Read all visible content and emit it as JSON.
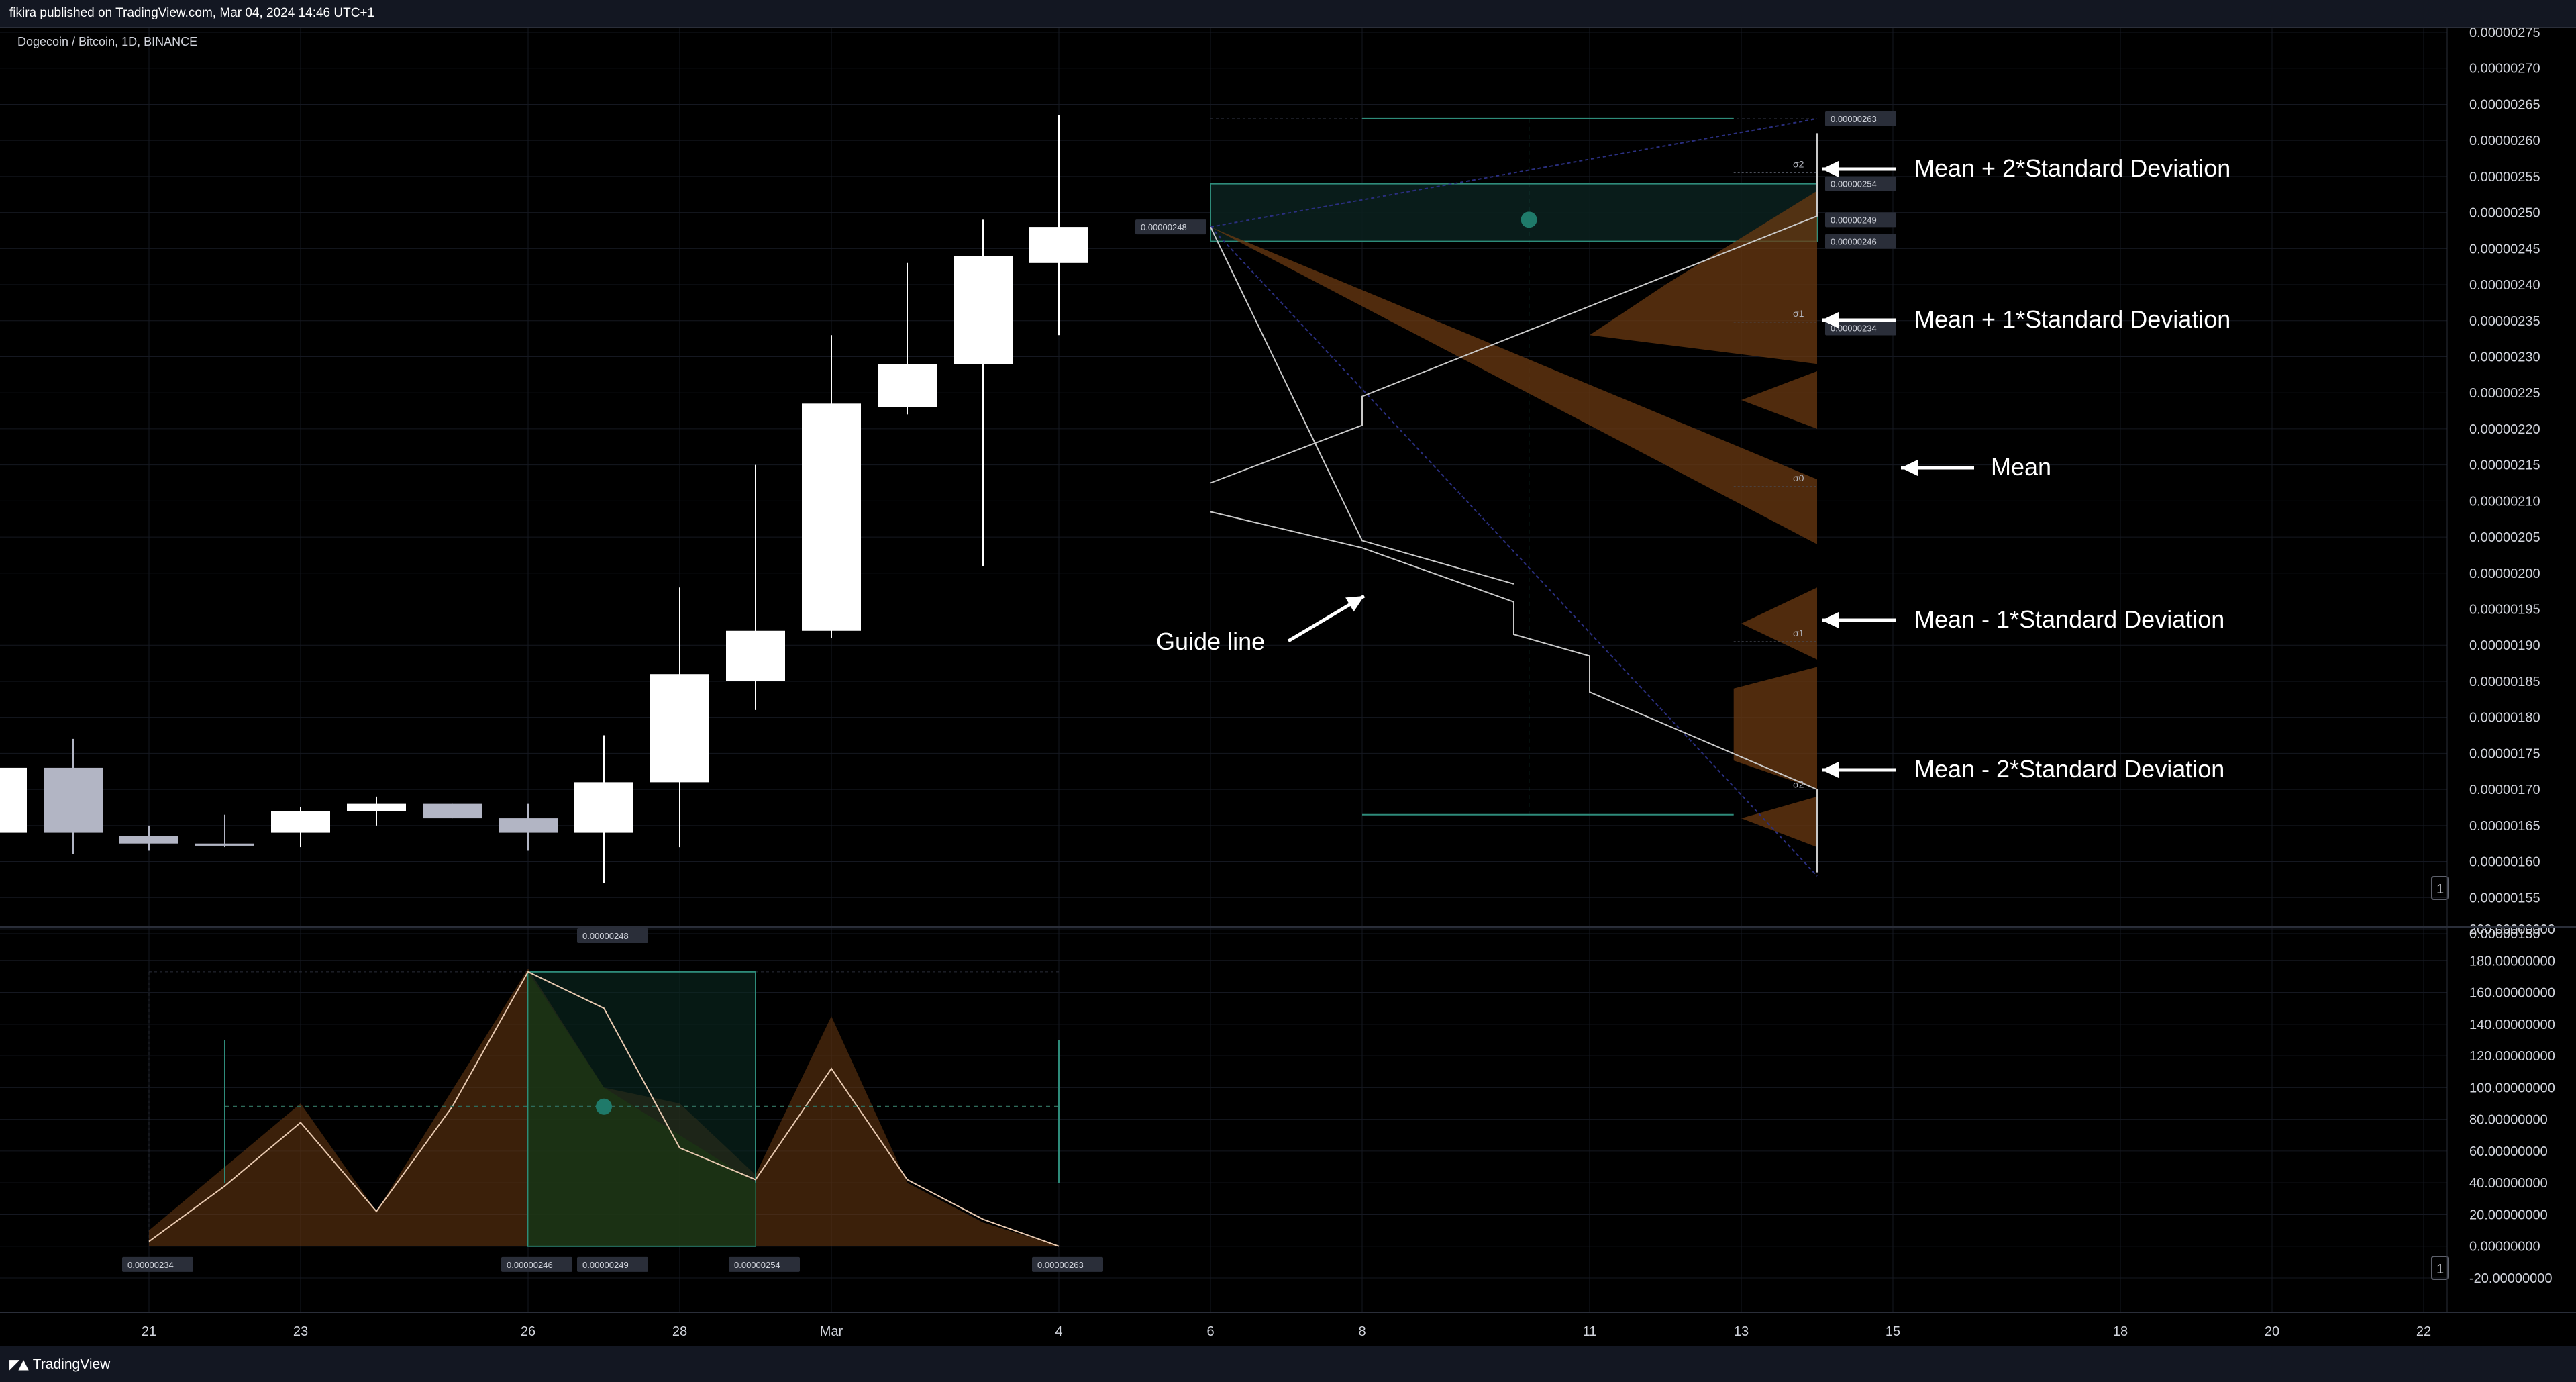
{
  "header": {
    "publish_line": "fikira published on TradingView.com, Mar 04, 2024 14:46 UTC+1"
  },
  "symbol": {
    "title": "Dogecoin / Bitcoin, 1D, BINANCE"
  },
  "footer": {
    "brand": "TradingView",
    "logo_icon": "tradingview-logo-icon"
  },
  "annotations": {
    "mean_plus_2": "Mean + 2*Standard Deviation",
    "mean_plus_1": "Mean + 1*Standard Deviation",
    "mean": "Mean",
    "mean_minus_1": "Mean - 1*Standard Deviation",
    "mean_minus_2": "Mean - 2*Standard Deviation",
    "guide_line": "Guide line"
  },
  "price_tags": {
    "start": "0.00000248",
    "top": "0.00000263",
    "box_top": "0.00000254",
    "mean": "0.00000249",
    "box_bottom": "0.00000246",
    "bottom": "0.00000234"
  },
  "sigma_labels": {
    "s2_up": "σ2",
    "s1_up": "σ1",
    "s0": "σ0",
    "s1_down": "σ1",
    "s2_down": "σ2"
  },
  "lower_tags": {
    "top": "0.00000248",
    "t1": "0.00000234",
    "t2": "0.00000246",
    "t3": "0.00000249",
    "t4": "0.00000254",
    "t5": "0.00000263"
  },
  "scale_buttons": {
    "main": "1",
    "lower": "1"
  },
  "colors": {
    "background": "#000000",
    "candle_up": "#ffffff",
    "candle_down": "#b2b5c4",
    "box_border": "#2e8b7a",
    "mean_dot": "#1f7a6a",
    "distribution_fill": "#6b3a12",
    "guide_line": "#2a2f80"
  },
  "chart_data": [
    {
      "type": "candlestick",
      "title": "Dogecoin / Bitcoin, 1D, BINANCE",
      "ylim": [
        1.5e-06,
        2.75e-06
      ],
      "y_ticks": [
        "0.00000275",
        "0.00000270",
        "0.00000265",
        "0.00000260",
        "0.00000255",
        "0.00000250",
        "0.00000245",
        "0.00000240",
        "0.00000235",
        "0.00000230",
        "0.00000225",
        "0.00000220",
        "0.00000215",
        "0.00000210",
        "0.00000205",
        "0.00000200",
        "0.00000195",
        "0.00000190",
        "0.00000185",
        "0.00000180",
        "0.00000175",
        "0.00000170",
        "0.00000165",
        "0.00000160",
        "0.00000155",
        "0.00000150"
      ],
      "x_ticks": [
        {
          "label": "21",
          "day": 1
        },
        {
          "label": "23",
          "day": 3
        },
        {
          "label": "26",
          "day": 6
        },
        {
          "label": "28",
          "day": 8
        },
        {
          "label": "Mar",
          "day": 10
        },
        {
          "label": "4",
          "day": 13
        },
        {
          "label": "6",
          "day": 15
        },
        {
          "label": "8",
          "day": 17
        },
        {
          "label": "11",
          "day": 20
        },
        {
          "label": "13",
          "day": 22
        },
        {
          "label": "15",
          "day": 24
        },
        {
          "label": "18",
          "day": 27
        },
        {
          "label": "20",
          "day": 29
        },
        {
          "label": "22",
          "day": 31
        }
      ],
      "candles": [
        {
          "day": -1,
          "o": 1.64e-06,
          "c": 1.73e-06,
          "h": 1.74e-06,
          "l": 1.61e-06
        },
        {
          "day": 0,
          "o": 1.73e-06,
          "c": 1.64e-06,
          "h": 1.77e-06,
          "l": 1.61e-06
        },
        {
          "day": 1,
          "o": 1.635e-06,
          "c": 1.625e-06,
          "h": 1.65e-06,
          "l": 1.615e-06
        },
        {
          "day": 2,
          "o": 1.625e-06,
          "c": 1.622e-06,
          "h": 1.665e-06,
          "l": 1.62e-06
        },
        {
          "day": 3,
          "o": 1.64e-06,
          "c": 1.67e-06,
          "h": 1.675e-06,
          "l": 1.62e-06
        },
        {
          "day": 4,
          "o": 1.67e-06,
          "c": 1.68e-06,
          "h": 1.69e-06,
          "l": 1.65e-06
        },
        {
          "day": 5,
          "o": 1.68e-06,
          "c": 1.66e-06,
          "h": 1.68e-06,
          "l": 1.66e-06
        },
        {
          "day": 6,
          "o": 1.66e-06,
          "c": 1.64e-06,
          "h": 1.68e-06,
          "l": 1.615e-06
        },
        {
          "day": 7,
          "o": 1.64e-06,
          "c": 1.71e-06,
          "h": 1.775e-06,
          "l": 1.57e-06
        },
        {
          "day": 8,
          "o": 1.71e-06,
          "c": 1.86e-06,
          "h": 1.98e-06,
          "l": 1.62e-06
        },
        {
          "day": 9,
          "o": 1.85e-06,
          "c": 1.92e-06,
          "h": 2.15e-06,
          "l": 1.81e-06
        },
        {
          "day": 10,
          "o": 1.92e-06,
          "c": 2.235e-06,
          "h": 2.33e-06,
          "l": 1.91e-06
        },
        {
          "day": 11,
          "o": 2.23e-06,
          "c": 2.29e-06,
          "h": 2.43e-06,
          "l": 2.22e-06
        },
        {
          "day": 12,
          "o": 2.29e-06,
          "c": 2.44e-06,
          "h": 2.49e-06,
          "l": 2.01e-06
        },
        {
          "day": 13,
          "o": 2.43e-06,
          "c": 2.48e-06,
          "h": 2.635e-06,
          "l": 2.33e-06
        }
      ],
      "projection": {
        "start_day": 15,
        "end_day": 23,
        "start_price": 2.48e-06,
        "box_top": 2.54e-06,
        "mean": 2.49e-06,
        "box_bottom": 2.46e-06,
        "range_top": 2.63e-06,
        "range_bottom": 2.34e-06,
        "upper_path": [
          [
            15,
            2.125e-06
          ],
          [
            17,
            2.205e-06
          ],
          [
            17,
            2.245e-06
          ],
          [
            23,
            2.495e-06
          ],
          [
            23,
            2.61e-06
          ]
        ],
        "lower_path": [
          [
            15,
            2.085e-06
          ],
          [
            17,
            2.035e-06
          ],
          [
            19,
            1.96e-06
          ],
          [
            19,
            1.915e-06
          ],
          [
            20,
            1.885e-06
          ],
          [
            20,
            1.835e-06
          ],
          [
            23,
            1.7e-06
          ],
          [
            23,
            1.585e-06
          ]
        ],
        "guide_upper_end": 2.63e-06,
        "guide_lower_end": 1.58e-06
      }
    },
    {
      "type": "area",
      "ylim": [
        -20,
        200
      ],
      "y_ticks": [
        "200.00000000",
        "180.00000000",
        "160.00000000",
        "140.00000000",
        "120.00000000",
        "100.00000000",
        "80.00000000",
        "60.00000000",
        "40.00000000",
        "20.00000000",
        "0.00000000",
        "-20.00000000"
      ],
      "series": [
        {
          "x": [
            1,
            2,
            3,
            4,
            5,
            6,
            7,
            8,
            9,
            10,
            11,
            12,
            13
          ],
          "values": [
            3,
            38,
            78,
            22,
            88,
            173,
            150,
            62,
            42,
            112,
            42,
            17,
            0
          ]
        }
      ],
      "distribution": {
        "x": [
          1,
          3,
          4,
          6,
          7,
          8,
          9,
          10,
          11,
          12,
          13
        ],
        "values": [
          10,
          90,
          22,
          175,
          100,
          90,
          45,
          145,
          40,
          15,
          0
        ]
      },
      "box": {
        "x_start": 6,
        "x_end": 9,
        "y_top": 173,
        "y_bottom": 0
      },
      "mean_level": 88
    }
  ]
}
